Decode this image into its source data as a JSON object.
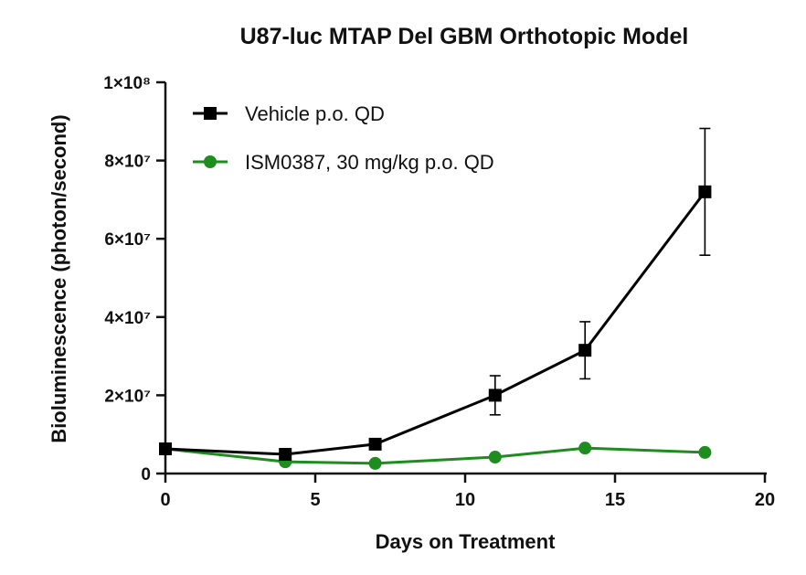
{
  "chart_data": {
    "type": "line",
    "title": "U87-luc MTAP Del GBM Orthotopic Model",
    "xlabel": "Days on Treatment",
    "ylabel": "Bioluminescence (photon/second)",
    "xlim": [
      0,
      20
    ],
    "ylim": [
      0,
      100000000
    ],
    "x_ticks": [
      0,
      5,
      10,
      15,
      20
    ],
    "x_tick_labels": [
      "0",
      "5",
      "10",
      "15",
      "20"
    ],
    "y_ticks": [
      0,
      20000000,
      40000000,
      60000000,
      80000000,
      100000000
    ],
    "y_tick_labels": [
      "0",
      "2×10⁷",
      "4×10⁷",
      "6×10⁷",
      "8×10⁷",
      "1×10⁸"
    ],
    "grid": false,
    "legend_position": "top-left",
    "series": [
      {
        "name": "Vehicle p.o. QD",
        "color": "#000000",
        "marker": "square",
        "x": [
          0,
          4,
          7,
          11,
          14,
          18
        ],
        "y": [
          6300000,
          4900000,
          7500000,
          20000000,
          31500000,
          72000000
        ],
        "error": [
          null,
          null,
          null,
          5000000,
          7300000,
          16200000
        ]
      },
      {
        "name": "ISM0387, 30 mg/kg p.o. QD",
        "color": "#1e8c1e",
        "marker": "circle",
        "x": [
          0,
          4,
          7,
          11,
          14,
          18
        ],
        "y": [
          6300000,
          3000000,
          2600000,
          4200000,
          6500000,
          5400000
        ],
        "error": [
          null,
          null,
          null,
          null,
          null,
          null
        ]
      }
    ]
  }
}
